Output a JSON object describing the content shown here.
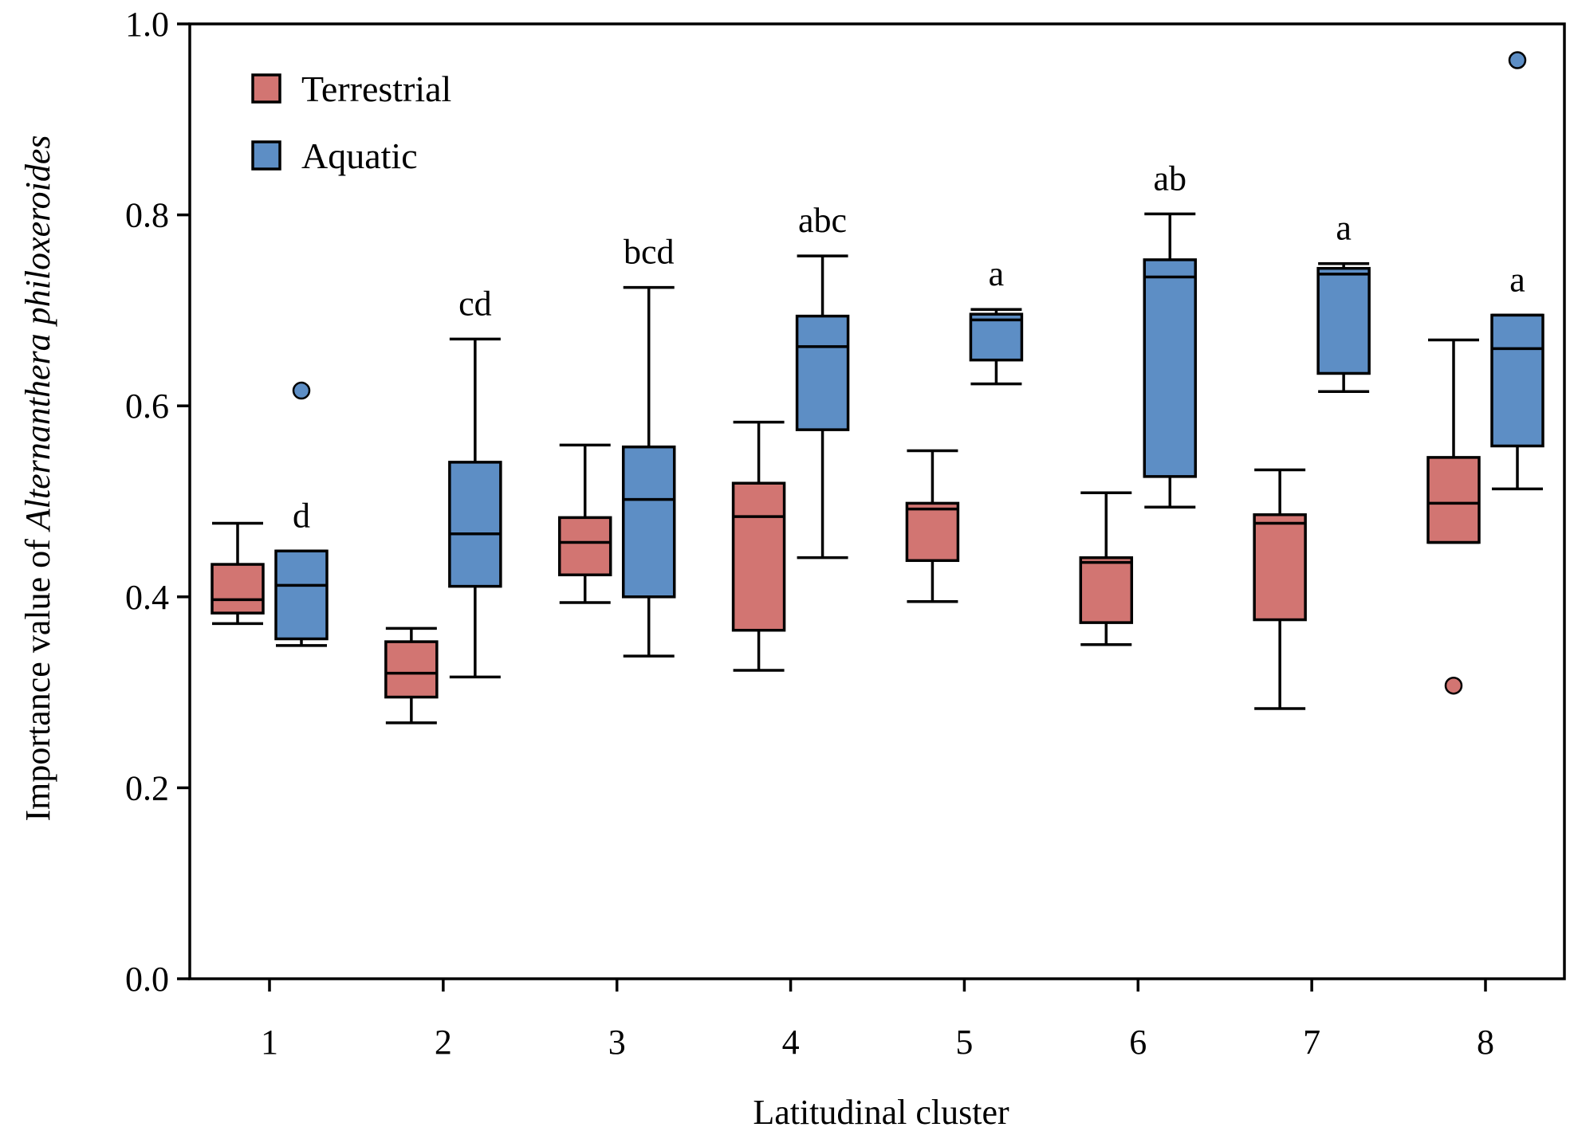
{
  "chart_data": {
    "type": "boxplot",
    "title": "",
    "xlabel": "Latitudinal cluster",
    "ylabel_prefix": "Importance value of ",
    "ylabel_species": "Alternanthera philoxeroides",
    "ylim": [
      0.0,
      1.0
    ],
    "yticks": [
      "0.0",
      "0.2",
      "0.4",
      "0.6",
      "0.8",
      "1.0"
    ],
    "categories": [
      "1",
      "2",
      "3",
      "4",
      "5",
      "6",
      "7",
      "8"
    ],
    "legend_position": "top-left",
    "series": [
      {
        "name": "Terrestrial",
        "color": "#d27572",
        "boxes": [
          {
            "min": 0.372,
            "q1": 0.383,
            "median": 0.397,
            "q3": 0.434,
            "max": 0.477,
            "outliers": []
          },
          {
            "min": 0.268,
            "q1": 0.295,
            "median": 0.32,
            "q3": 0.353,
            "max": 0.367,
            "outliers": []
          },
          {
            "min": 0.394,
            "q1": 0.423,
            "median": 0.457,
            "q3": 0.483,
            "max": 0.559,
            "outliers": []
          },
          {
            "min": 0.323,
            "q1": 0.365,
            "median": 0.484,
            "q3": 0.519,
            "max": 0.583,
            "outliers": []
          },
          {
            "min": 0.395,
            "q1": 0.438,
            "median": 0.492,
            "q3": 0.498,
            "max": 0.553,
            "outliers": []
          },
          {
            "min": 0.35,
            "q1": 0.373,
            "median": 0.436,
            "q3": 0.441,
            "max": 0.509,
            "outliers": []
          },
          {
            "min": 0.283,
            "q1": 0.376,
            "median": 0.477,
            "q3": 0.486,
            "max": 0.533,
            "outliers": []
          },
          {
            "min": 0.457,
            "q1": 0.457,
            "median": 0.498,
            "q3": 0.546,
            "max": 0.669,
            "outliers": [
              0.307
            ]
          }
        ]
      },
      {
        "name": "Aquatic",
        "color": "#5d8ec5",
        "boxes": [
          {
            "min": 0.349,
            "q1": 0.356,
            "median": 0.412,
            "q3": 0.448,
            "max": 0.448,
            "outliers": [
              0.616
            ]
          },
          {
            "min": 0.316,
            "q1": 0.411,
            "median": 0.466,
            "q3": 0.541,
            "max": 0.67,
            "outliers": []
          },
          {
            "min": 0.338,
            "q1": 0.4,
            "median": 0.502,
            "q3": 0.557,
            "max": 0.724,
            "outliers": []
          },
          {
            "min": 0.441,
            "q1": 0.575,
            "median": 0.662,
            "q3": 0.694,
            "max": 0.757,
            "outliers": []
          },
          {
            "min": 0.623,
            "q1": 0.648,
            "median": 0.69,
            "q3": 0.696,
            "max": 0.701,
            "outliers": []
          },
          {
            "min": 0.494,
            "q1": 0.526,
            "median": 0.735,
            "q3": 0.753,
            "max": 0.801,
            "outliers": []
          },
          {
            "min": 0.615,
            "q1": 0.634,
            "median": 0.738,
            "q3": 0.744,
            "max": 0.749,
            "outliers": []
          },
          {
            "min": 0.513,
            "q1": 0.558,
            "median": 0.66,
            "q3": 0.695,
            "max": 0.695,
            "outliers": [
              0.962
            ]
          }
        ]
      }
    ],
    "annotations": [
      "d",
      "cd",
      "bcd",
      "abc",
      "a",
      "ab",
      "a",
      "a"
    ]
  }
}
